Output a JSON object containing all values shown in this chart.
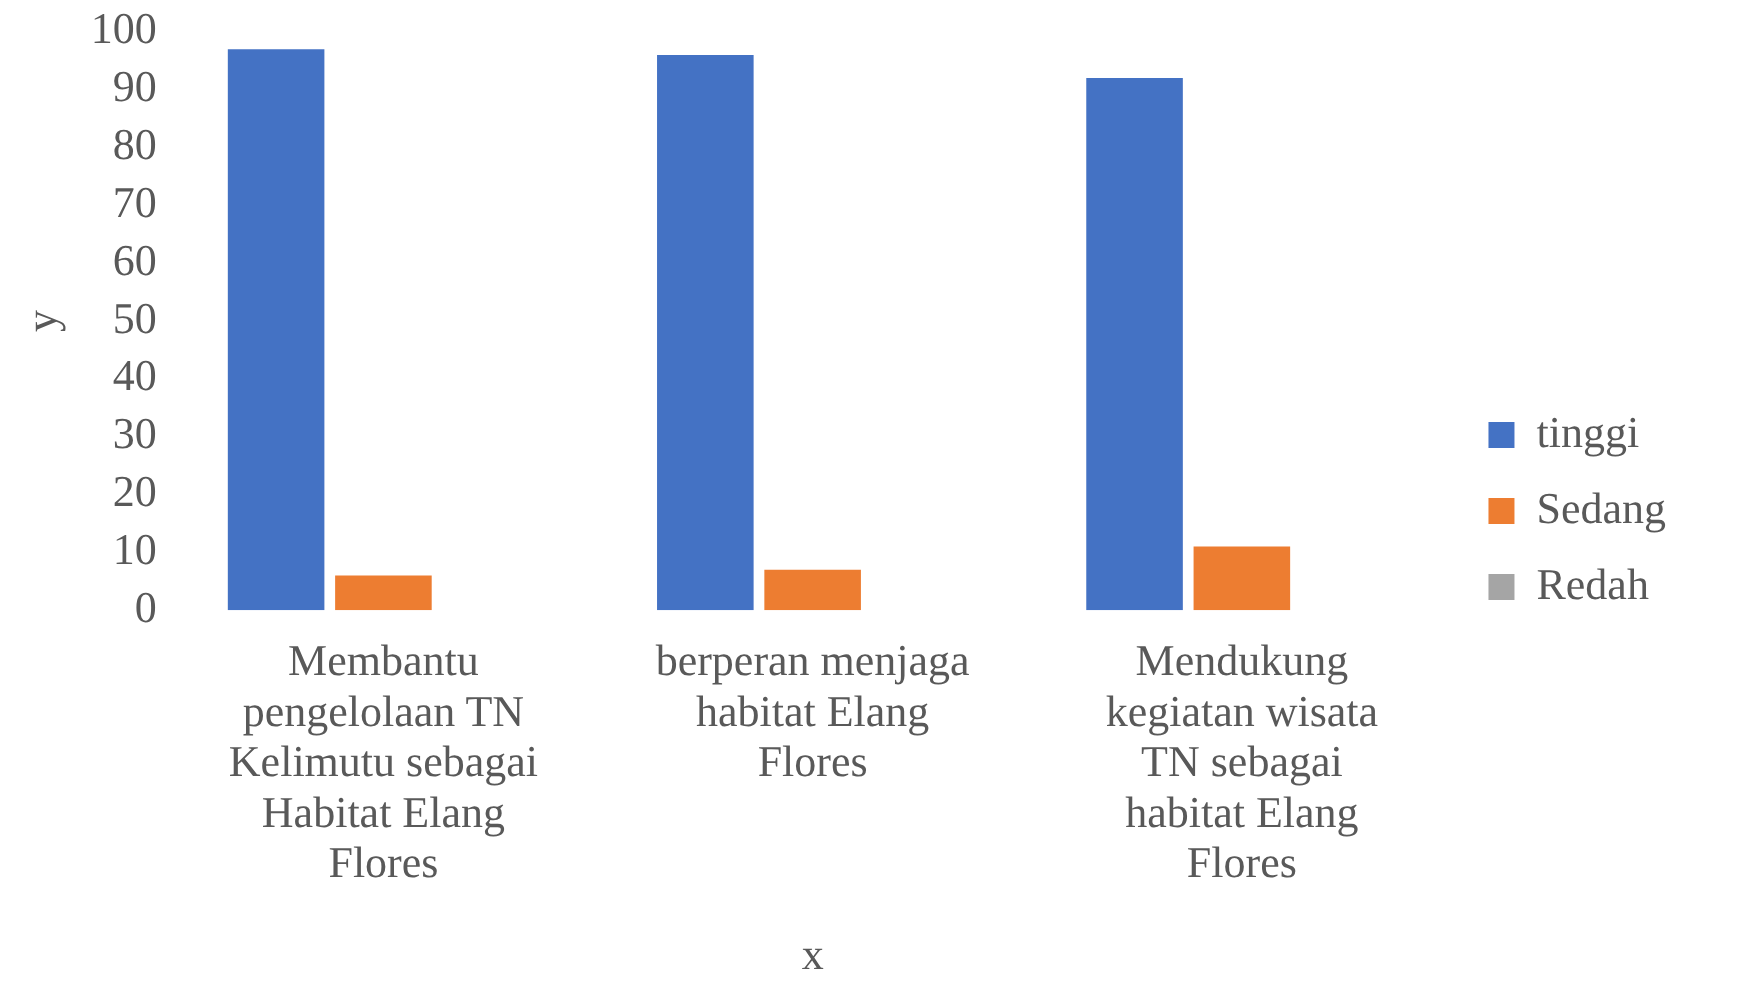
{
  "chart_data": {
    "type": "bar",
    "xlabel": "x",
    "ylabel": "y",
    "categories": [
      "Membantu pengelolaan TN Kelimutu sebagai Habitat Elang Flores",
      "berperan menjaga habitat Elang Flores",
      "Mendukung kegiatan wisata TN sebagai habitat Elang Flores"
    ],
    "series": [
      {
        "name": "tinggi",
        "color": "#4472c4",
        "values": [
          97,
          96,
          92
        ]
      },
      {
        "name": "Sedang",
        "color": "#ed7d31",
        "values": [
          6,
          7,
          11
        ]
      },
      {
        "name": "Redah",
        "color": "#a5a5a5",
        "values": [
          0,
          0,
          0
        ]
      }
    ],
    "ylim": [
      0,
      100
    ],
    "yticks": [
      0,
      10,
      20,
      30,
      40,
      50,
      60,
      70,
      80,
      90,
      100
    ],
    "grid": false,
    "legend": "right"
  }
}
